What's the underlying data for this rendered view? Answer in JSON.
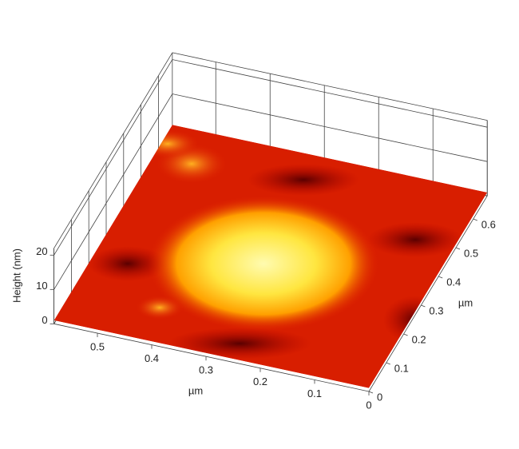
{
  "chart_data": {
    "type": "surface3d",
    "x_label": "µm",
    "y_label": "µm",
    "z_label": "Height (nm)",
    "xlim": [
      0,
      0.58
    ],
    "xticks": [
      0,
      0.1,
      0.2,
      0.3,
      0.4,
      0.5
    ],
    "ylim": [
      0,
      0.68
    ],
    "yticks": [
      0,
      0.1,
      0.2,
      0.3,
      0.4,
      0.5,
      0.6
    ],
    "zlim": [
      0,
      22
    ],
    "zticks": [
      0,
      10,
      20
    ],
    "grid": true
  }
}
